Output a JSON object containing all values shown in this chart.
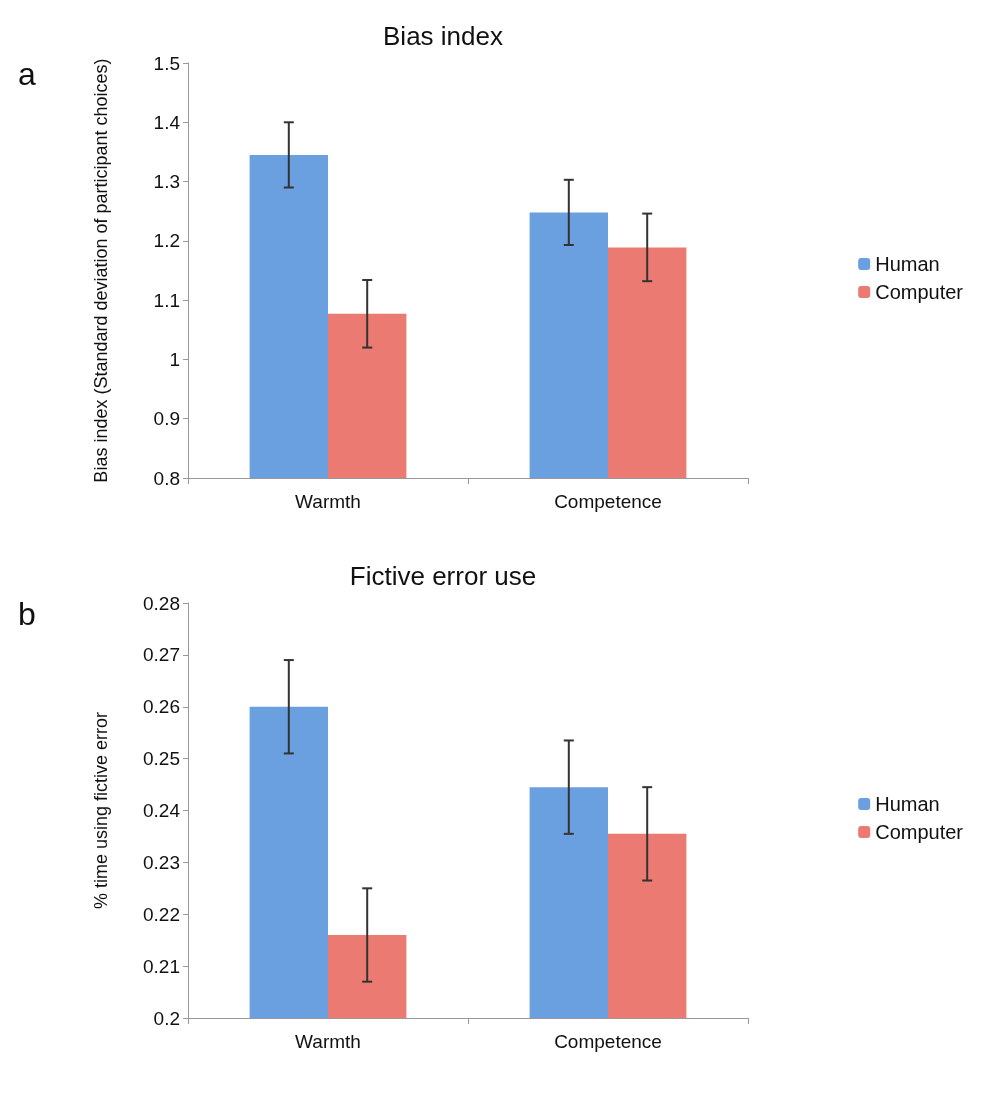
{
  "chart_data": [
    {
      "type": "bar",
      "title": "Bias index",
      "ylabel": "Bias index (Standard deviation of participant choices)",
      "annotations": [
        "a"
      ],
      "categories": [
        "Warmth",
        "Competence"
      ],
      "series": [
        {
          "name": "Human",
          "color": "#6a9fe0",
          "values": [
            1.345,
            1.248
          ],
          "errors": [
            0.055,
            0.055
          ]
        },
        {
          "name": "Computer",
          "color": "#eb7a72",
          "values": [
            1.077,
            1.189
          ],
          "errors": [
            0.057,
            0.057
          ]
        }
      ],
      "ylim": [
        0.8,
        1.5
      ],
      "yticks": [
        0.8,
        0.9,
        1,
        1.1,
        1.2,
        1.3,
        1.4,
        1.5
      ],
      "grid": false,
      "legend": "right"
    },
    {
      "type": "bar",
      "title": "Fictive error use",
      "ylabel": "% time using fictive error",
      "annotations": [
        "b"
      ],
      "categories": [
        "Warmth",
        "Competence"
      ],
      "series": [
        {
          "name": "Human",
          "color": "#6a9fe0",
          "values": [
            0.26,
            0.2445
          ],
          "errors": [
            0.009,
            0.009
          ]
        },
        {
          "name": "Computer",
          "color": "#eb7a72",
          "values": [
            0.216,
            0.2355
          ],
          "errors": [
            0.009,
            0.009
          ]
        }
      ],
      "ylim": [
        0.2,
        0.28
      ],
      "yticks": [
        0.2,
        0.21,
        0.22,
        0.23,
        0.24,
        0.25,
        0.26,
        0.27,
        0.28
      ],
      "grid": false,
      "legend": "right"
    }
  ]
}
